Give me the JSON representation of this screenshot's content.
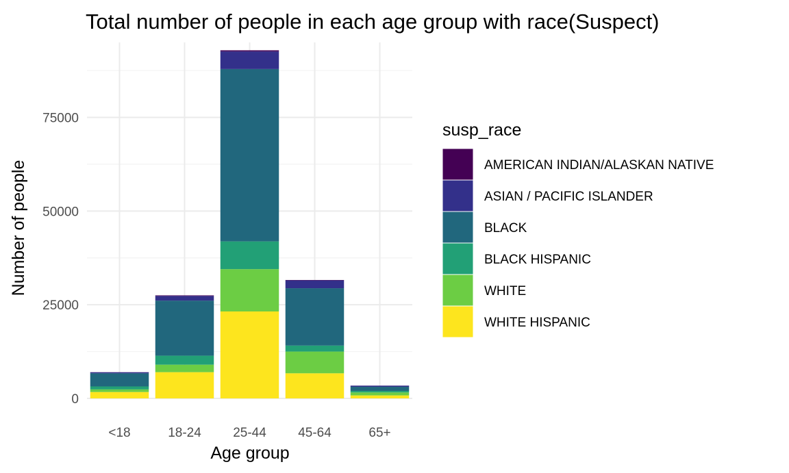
{
  "chart_data": {
    "type": "bar",
    "stacked": true,
    "title": "Total number of people in each age group with race(Suspect)",
    "xlabel": "Age group",
    "ylabel": "Number of people",
    "categories": [
      "<18",
      "18-24",
      "25-44",
      "45-64",
      "65+"
    ],
    "ylim": [
      0,
      95000
    ],
    "yticks": [
      0,
      25000,
      50000,
      75000
    ],
    "ytick_labels": [
      "0",
      "25000",
      "50000",
      "75000"
    ],
    "legend_title": "susp_race",
    "legend_position": "right",
    "grid": true,
    "series": [
      {
        "name": "AMERICAN INDIAN/ALASKAN NATIVE",
        "color": "#440154",
        "values": [
          30,
          150,
          300,
          100,
          10
        ]
      },
      {
        "name": "ASIAN / PACIFIC ISLANDER",
        "color": "#33308a",
        "values": [
          270,
          1250,
          4700,
          2100,
          300
        ]
      },
      {
        "name": "BLACK",
        "color": "#21677d",
        "values": [
          3500,
          14700,
          46000,
          15300,
          1100
        ]
      },
      {
        "name": "BLACK HISPANIC",
        "color": "#22a076",
        "values": [
          800,
          2400,
          7400,
          1600,
          400
        ]
      },
      {
        "name": "WHITE",
        "color": "#6ccd44",
        "values": [
          700,
          2000,
          11300,
          5800,
          800
        ]
      },
      {
        "name": "WHITE HISPANIC",
        "color": "#fde51e",
        "values": [
          1700,
          7000,
          23200,
          6700,
          800
        ]
      }
    ]
  }
}
